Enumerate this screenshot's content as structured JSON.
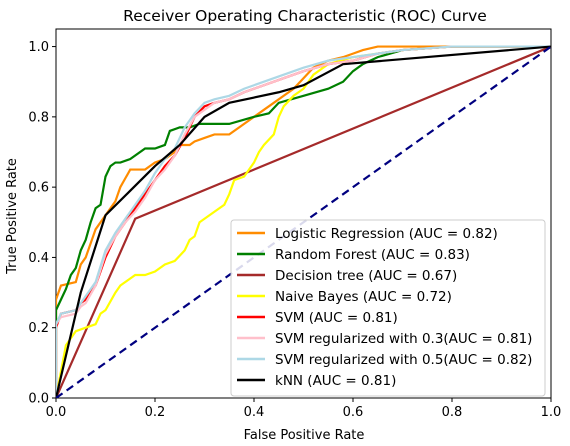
{
  "chart_data": {
    "type": "line",
    "title": "Receiver Operating Characteristic (ROC) Curve",
    "xlabel": "False Positive Rate",
    "ylabel": "True Positive Rate",
    "xlim": [
      0,
      1
    ],
    "ylim": [
      0,
      1.05
    ],
    "xticks": [
      "0.0",
      "0.2",
      "0.4",
      "0.6",
      "0.8",
      "1.0"
    ],
    "yticks": [
      "0.0",
      "0.2",
      "0.4",
      "0.6",
      "0.8",
      "1.0"
    ],
    "legend_position": "lower-right",
    "grid": false,
    "reference_line": {
      "color": "#000080",
      "style": "dashed",
      "x": [
        0,
        1
      ],
      "y": [
        0,
        1
      ]
    },
    "series": [
      {
        "name": "Logistic Regression (AUC = 0.82)",
        "color": "#ff8c00",
        "x": [
          0,
          0,
          0.01,
          0.04,
          0.05,
          0.06,
          0.08,
          0.1,
          0.12,
          0.13,
          0.15,
          0.18,
          0.2,
          0.22,
          0.24,
          0.25,
          0.27,
          0.28,
          0.3,
          0.32,
          0.35,
          0.38,
          0.4,
          0.42,
          0.44,
          0.46,
          0.48,
          0.5,
          0.52,
          0.55,
          0.58,
          0.6,
          0.62,
          0.65,
          0.7,
          0.8,
          1.0
        ],
        "y": [
          0,
          0.28,
          0.32,
          0.33,
          0.38,
          0.4,
          0.48,
          0.52,
          0.56,
          0.6,
          0.65,
          0.65,
          0.67,
          0.68,
          0.7,
          0.72,
          0.72,
          0.73,
          0.74,
          0.75,
          0.75,
          0.78,
          0.8,
          0.82,
          0.84,
          0.86,
          0.88,
          0.91,
          0.94,
          0.96,
          0.97,
          0.98,
          0.99,
          1.0,
          1.0,
          1.0,
          1.0
        ]
      },
      {
        "name": "Random Forest (AUC = 0.83)",
        "color": "#008000",
        "x": [
          0,
          0,
          0.01,
          0.02,
          0.03,
          0.04,
          0.05,
          0.06,
          0.07,
          0.08,
          0.09,
          0.1,
          0.11,
          0.12,
          0.13,
          0.15,
          0.18,
          0.2,
          0.22,
          0.23,
          0.25,
          0.27,
          0.29,
          0.3,
          0.35,
          0.4,
          0.43,
          0.45,
          0.5,
          0.55,
          0.58,
          0.6,
          0.62,
          0.65,
          0.7,
          0.8,
          1.0
        ],
        "y": [
          0,
          0.25,
          0.28,
          0.31,
          0.35,
          0.37,
          0.42,
          0.45,
          0.5,
          0.54,
          0.55,
          0.63,
          0.66,
          0.67,
          0.67,
          0.68,
          0.71,
          0.71,
          0.72,
          0.76,
          0.77,
          0.77,
          0.78,
          0.78,
          0.78,
          0.8,
          0.81,
          0.84,
          0.86,
          0.88,
          0.9,
          0.93,
          0.95,
          0.97,
          0.99,
          1.0,
          1.0
        ]
      },
      {
        "name": "Decision tree (AUC = 0.67)",
        "color": "#a52a2a",
        "x": [
          0,
          0.16,
          1.0
        ],
        "y": [
          0,
          0.51,
          1.0
        ]
      },
      {
        "name": "Naive Bayes (AUC = 0.72)",
        "color": "#ffff00",
        "x": [
          0,
          0.02,
          0.04,
          0.06,
          0.08,
          0.09,
          0.1,
          0.12,
          0.13,
          0.14,
          0.16,
          0.18,
          0.2,
          0.22,
          0.24,
          0.26,
          0.27,
          0.28,
          0.29,
          0.3,
          0.32,
          0.34,
          0.35,
          0.36,
          0.38,
          0.4,
          0.41,
          0.42,
          0.44,
          0.45,
          0.46,
          0.48,
          0.5,
          0.52,
          0.55,
          0.6,
          0.7,
          0.8,
          1.0
        ],
        "y": [
          0,
          0.15,
          0.19,
          0.2,
          0.21,
          0.24,
          0.25,
          0.3,
          0.32,
          0.33,
          0.35,
          0.35,
          0.36,
          0.38,
          0.39,
          0.42,
          0.45,
          0.46,
          0.5,
          0.51,
          0.53,
          0.55,
          0.58,
          0.62,
          0.63,
          0.67,
          0.7,
          0.72,
          0.75,
          0.8,
          0.83,
          0.86,
          0.88,
          0.92,
          0.95,
          0.97,
          0.99,
          1.0,
          1.0
        ]
      },
      {
        "name": "SVM (AUC = 0.81)",
        "color": "#ff0000",
        "x": [
          0,
          0,
          0.01,
          0.04,
          0.05,
          0.06,
          0.08,
          0.1,
          0.12,
          0.14,
          0.16,
          0.18,
          0.2,
          0.22,
          0.24,
          0.26,
          0.28,
          0.3,
          0.32,
          0.35,
          0.38,
          0.42,
          0.46,
          0.5,
          0.55,
          0.6,
          0.65,
          0.7,
          0.8,
          1.0
        ],
        "y": [
          0,
          0.2,
          0.24,
          0.25,
          0.27,
          0.28,
          0.32,
          0.4,
          0.46,
          0.5,
          0.54,
          0.58,
          0.62,
          0.66,
          0.69,
          0.74,
          0.8,
          0.83,
          0.84,
          0.85,
          0.87,
          0.89,
          0.91,
          0.93,
          0.95,
          0.96,
          0.98,
          0.99,
          1.0,
          1.0
        ]
      },
      {
        "name": "SVM regularized with 0.3(AUC = 0.81)",
        "color": "#ffc0cb",
        "x": [
          0,
          0,
          0.01,
          0.04,
          0.05,
          0.06,
          0.08,
          0.1,
          0.12,
          0.14,
          0.16,
          0.18,
          0.2,
          0.22,
          0.24,
          0.26,
          0.28,
          0.3,
          0.32,
          0.35,
          0.38,
          0.42,
          0.46,
          0.5,
          0.55,
          0.6,
          0.65,
          0.7,
          0.8,
          1.0
        ],
        "y": [
          0,
          0.21,
          0.23,
          0.24,
          0.26,
          0.27,
          0.32,
          0.41,
          0.46,
          0.5,
          0.53,
          0.57,
          0.62,
          0.65,
          0.69,
          0.75,
          0.8,
          0.82,
          0.84,
          0.85,
          0.87,
          0.89,
          0.91,
          0.93,
          0.95,
          0.96,
          0.98,
          0.99,
          1.0,
          1.0
        ]
      },
      {
        "name": "SVM regularized with 0.5(AUC = 0.82)",
        "color": "#add8e6",
        "x": [
          0,
          0,
          0.01,
          0.04,
          0.05,
          0.06,
          0.08,
          0.1,
          0.12,
          0.14,
          0.16,
          0.18,
          0.2,
          0.22,
          0.24,
          0.26,
          0.28,
          0.3,
          0.32,
          0.35,
          0.38,
          0.42,
          0.46,
          0.5,
          0.55,
          0.6,
          0.65,
          0.7,
          0.8,
          1.0
        ],
        "y": [
          0,
          0.21,
          0.24,
          0.25,
          0.27,
          0.29,
          0.33,
          0.42,
          0.47,
          0.51,
          0.55,
          0.59,
          0.64,
          0.68,
          0.71,
          0.77,
          0.81,
          0.84,
          0.85,
          0.86,
          0.88,
          0.9,
          0.92,
          0.94,
          0.96,
          0.97,
          0.98,
          0.99,
          1.0,
          1.0
        ]
      },
      {
        "name": "kNN (AUC = 0.81)",
        "color": "#000000",
        "x": [
          0,
          0.05,
          0.1,
          0.15,
          0.2,
          0.25,
          0.3,
          0.35,
          0.45,
          0.5,
          0.58,
          1.0
        ],
        "y": [
          0,
          0.3,
          0.52,
          0.59,
          0.66,
          0.72,
          0.8,
          0.84,
          0.87,
          0.89,
          0.95,
          1.0
        ]
      }
    ]
  }
}
